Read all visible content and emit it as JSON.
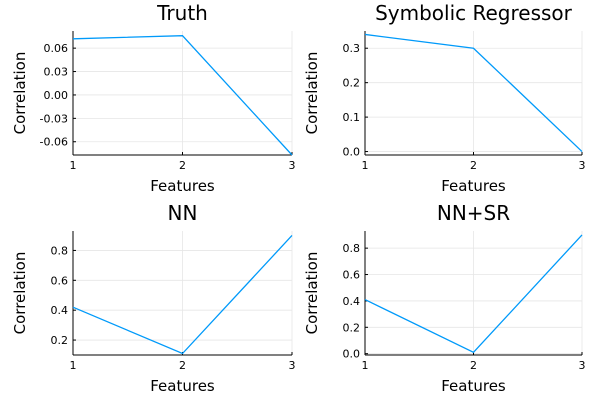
{
  "chart_data": [
    {
      "type": "line",
      "title": "Truth",
      "xlabel": "Features",
      "ylabel": "Correlation",
      "x": [
        1,
        2,
        3
      ],
      "xticks": [
        "1",
        "2",
        "3"
      ],
      "xlim": [
        1,
        3
      ],
      "yticks": [
        "0.06",
        "0.03",
        "0.00",
        "-0.03",
        "-0.06"
      ],
      "ytick_values": [
        0.06,
        0.03,
        0.0,
        -0.03,
        -0.06
      ],
      "ylim": [
        -0.077,
        0.082
      ],
      "grid": true,
      "series": [
        {
          "values": [
            0.072,
            0.076,
            -0.077
          ],
          "color": "#009AFA"
        }
      ]
    },
    {
      "type": "line",
      "title": "Symbolic Regressor",
      "xlabel": "Features",
      "ylabel": "Correlation",
      "x": [
        1,
        2,
        3
      ],
      "xticks": [
        "1",
        "2",
        "3"
      ],
      "xlim": [
        1,
        3
      ],
      "yticks": [
        "0.3",
        "0.2",
        "0.1",
        "0.0"
      ],
      "ytick_values": [
        0.3,
        0.2,
        0.1,
        0.0
      ],
      "ylim": [
        -0.01,
        0.35
      ],
      "grid": true,
      "series": [
        {
          "values": [
            0.34,
            0.3,
            0.0
          ],
          "color": "#009AFA"
        }
      ]
    },
    {
      "type": "line",
      "title": "NN",
      "xlabel": "Features",
      "ylabel": "Correlation",
      "x": [
        1,
        2,
        3
      ],
      "xticks": [
        "1",
        "2",
        "3"
      ],
      "xlim": [
        1,
        3
      ],
      "yticks": [
        "0.8",
        "0.6",
        "0.4",
        "0.2"
      ],
      "ytick_values": [
        0.8,
        0.6,
        0.4,
        0.2
      ],
      "ylim": [
        0.1,
        0.93
      ],
      "grid": true,
      "series": [
        {
          "values": [
            0.42,
            0.11,
            0.9
          ],
          "color": "#009AFA"
        }
      ]
    },
    {
      "type": "line",
      "title": "NN+SR",
      "xlabel": "Features",
      "ylabel": "Correlation",
      "x": [
        1,
        2,
        3
      ],
      "xticks": [
        "1",
        "2",
        "3"
      ],
      "xlim": [
        1,
        3
      ],
      "yticks": [
        "0.8",
        "0.6",
        "0.4",
        "0.2",
        "0.0"
      ],
      "ytick_values": [
        0.8,
        0.6,
        0.4,
        0.2,
        0.0
      ],
      "ylim": [
        -0.01,
        0.93
      ],
      "grid": true,
      "series": [
        {
          "values": [
            0.41,
            0.01,
            0.9
          ],
          "color": "#009AFA"
        }
      ]
    }
  ]
}
